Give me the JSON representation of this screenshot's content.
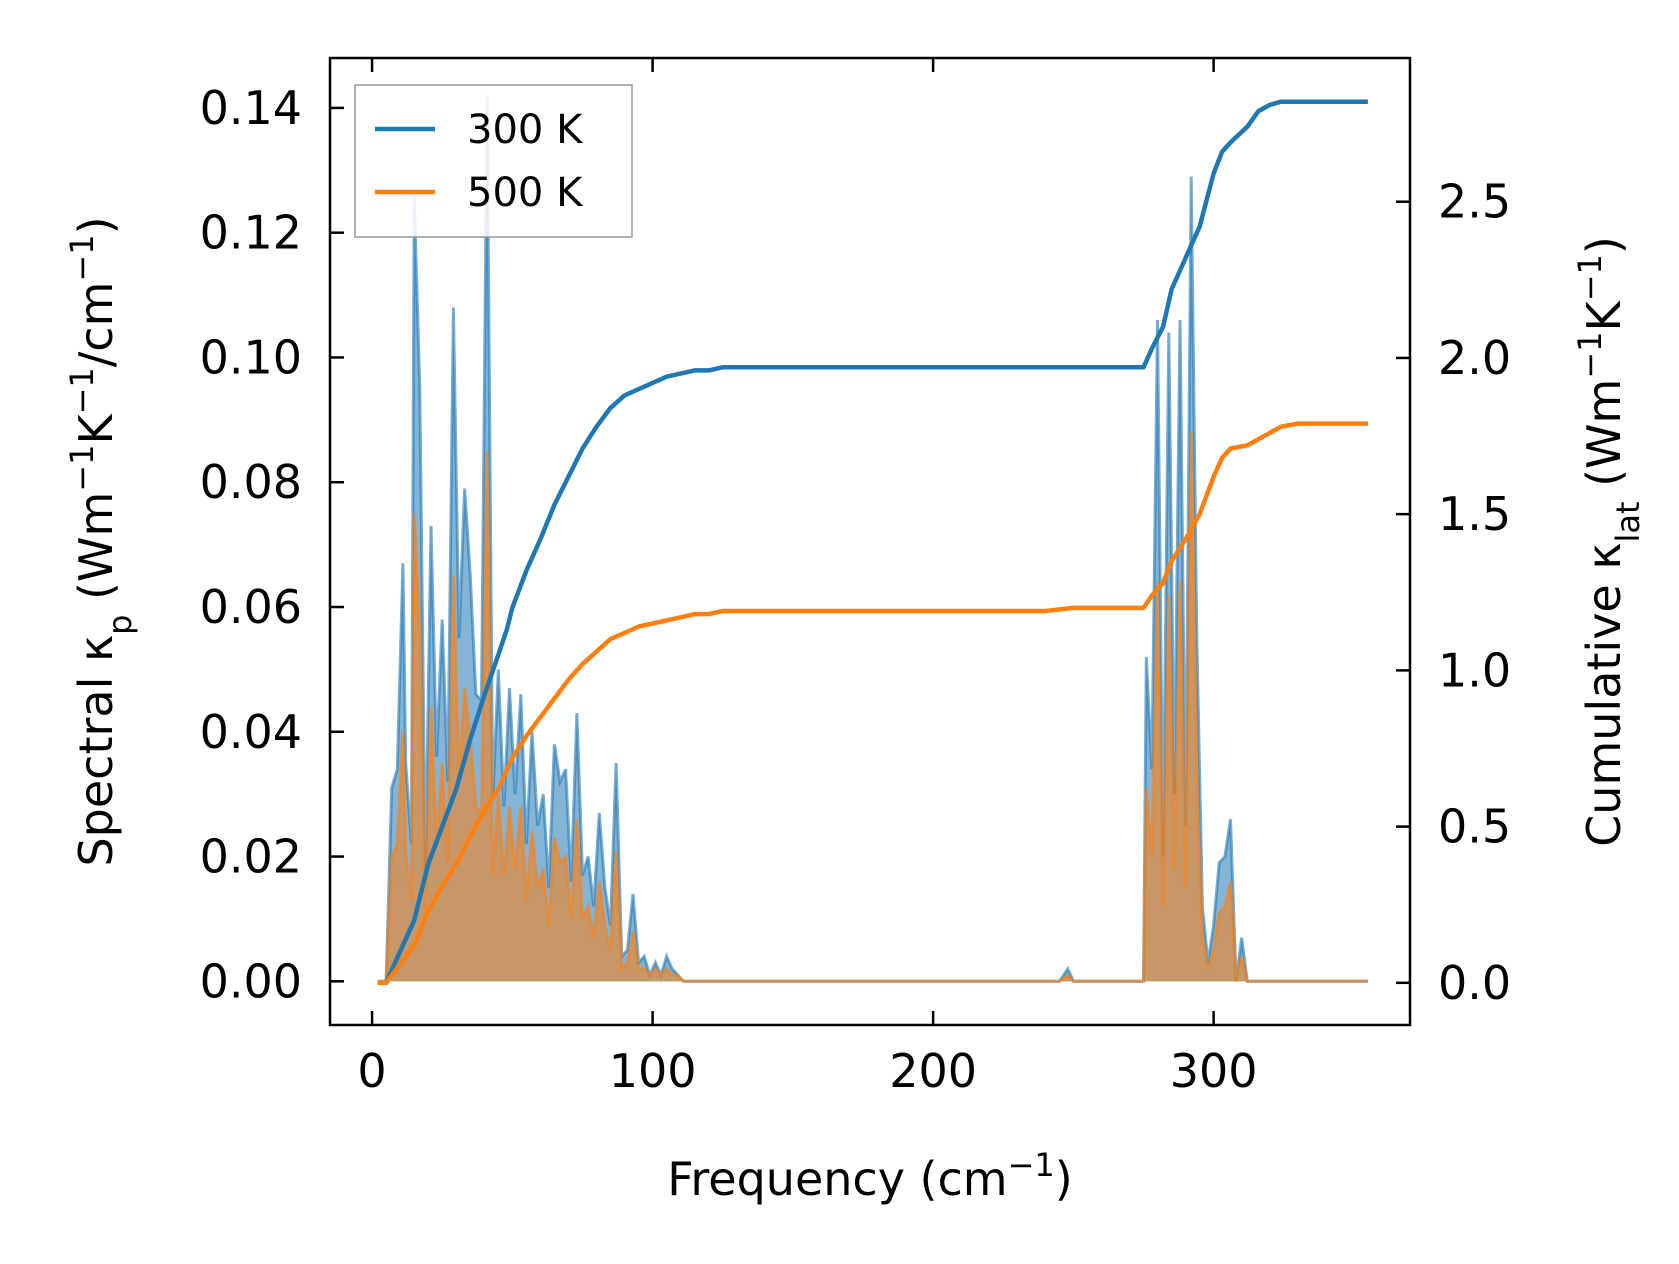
{
  "chart_data": {
    "type": "line",
    "xlabel": {
      "main": "Frequency (cm",
      "sup": "−1",
      "tail": ")"
    },
    "ylabel_left": [
      {
        "t": "Spectral κ"
      },
      {
        "t": "p",
        "sub": true
      },
      {
        "t": " (Wm"
      },
      {
        "t": "−1",
        "sup": true
      },
      {
        "t": "K"
      },
      {
        "t": "−1",
        "sup": true
      },
      {
        "t": "/cm"
      },
      {
        "t": "−1",
        "sup": true
      },
      {
        "t": ")"
      }
    ],
    "ylabel_right": [
      {
        "t": "Cumulative κ"
      },
      {
        "t": "lat",
        "sub": true
      },
      {
        "t": " (Wm"
      },
      {
        "t": "−1",
        "sup": true
      },
      {
        "t": "K"
      },
      {
        "t": "−1",
        "sup": true
      },
      {
        "t": ")"
      }
    ],
    "xlim": [
      -15,
      370
    ],
    "ylim_left": [
      -0.007,
      0.148
    ],
    "ylim_right": [
      -0.135,
      2.96
    ],
    "xticks": [
      0,
      100,
      200,
      300
    ],
    "xtick_labels": [
      "0",
      "100",
      "200",
      "300"
    ],
    "yticks_left": [
      0.0,
      0.02,
      0.04,
      0.06,
      0.08,
      0.1,
      0.12,
      0.14
    ],
    "ytick_labels_left": [
      "0.00",
      "0.02",
      "0.04",
      "0.06",
      "0.08",
      "0.10",
      "0.12",
      "0.14"
    ],
    "yticks_right": [
      0.0,
      0.5,
      1.0,
      1.5,
      2.0,
      2.5
    ],
    "ytick_labels_right": [
      "0.0",
      "0.5",
      "1.0",
      "1.5",
      "2.0",
      "2.5"
    ],
    "legend": {
      "position": "top-left",
      "entries": [
        "300 K",
        "500 K"
      ]
    },
    "colors": {
      "300 K": "#1f77b4",
      "500 K": "#ff7f0e",
      "fill_300": "#1f77b4",
      "fill_500": "#ff7f0e"
    },
    "spectral": [
      {
        "name": "300 K",
        "x": [
          2,
          5,
          7,
          9,
          11,
          12,
          14,
          15,
          17,
          19,
          21,
          23,
          25,
          27,
          29,
          31,
          33,
          35,
          37,
          39,
          41,
          43,
          45,
          47,
          49,
          51,
          53,
          55,
          57,
          59,
          61,
          63,
          65,
          67,
          69,
          71,
          73,
          75,
          77,
          79,
          81,
          83,
          85,
          87,
          89,
          91,
          93,
          95,
          97,
          99,
          101,
          103,
          105,
          107,
          109,
          111,
          113,
          115,
          117,
          119,
          121,
          123,
          125,
          127,
          129,
          131,
          133,
          135,
          137,
          139,
          141,
          143,
          145,
          150,
          245,
          248,
          250,
          253,
          275,
          276,
          278,
          280,
          282,
          284,
          286,
          288,
          290,
          292,
          294,
          296,
          298,
          300,
          302,
          304,
          306,
          308,
          310,
          312,
          314,
          316,
          318,
          320,
          322,
          324,
          326,
          328,
          330,
          355
        ],
        "y": [
          0.0,
          0.0,
          0.031,
          0.034,
          0.067,
          0.035,
          0.022,
          0.126,
          0.095,
          0.017,
          0.073,
          0.036,
          0.058,
          0.032,
          0.108,
          0.055,
          0.079,
          0.065,
          0.046,
          0.045,
          0.142,
          0.029,
          0.05,
          0.028,
          0.047,
          0.03,
          0.046,
          0.022,
          0.04,
          0.025,
          0.03,
          0.015,
          0.038,
          0.032,
          0.034,
          0.016,
          0.043,
          0.017,
          0.02,
          0.012,
          0.027,
          0.015,
          0.009,
          0.035,
          0.004,
          0.005,
          0.014,
          0.003,
          0.004,
          0.001,
          0.003,
          0.001,
          0.004,
          0.002,
          0.001,
          0.0,
          0.0,
          0.0,
          0.0,
          0.0,
          0.0,
          0.0,
          0.0,
          0.0,
          0.0,
          0.0,
          0.0,
          0.0,
          0.0,
          0.0,
          0.0,
          0.0,
          0.0,
          0.0,
          0.0,
          0.002,
          0.0,
          0.0,
          0.0,
          0.052,
          0.034,
          0.106,
          0.02,
          0.104,
          0.03,
          0.106,
          0.025,
          0.129,
          0.055,
          0.012,
          0.003,
          0.009,
          0.019,
          0.02,
          0.026,
          0.0,
          0.007,
          0.0,
          0.0,
          0.0,
          0.0,
          0.0,
          0.0,
          0.0,
          0.0,
          0.0,
          0.0,
          0.0
        ]
      },
      {
        "name": "500 K",
        "x": [
          2,
          5,
          7,
          9,
          11,
          12,
          14,
          15,
          17,
          19,
          21,
          23,
          25,
          27,
          29,
          31,
          33,
          35,
          37,
          39,
          41,
          43,
          45,
          47,
          49,
          51,
          53,
          55,
          57,
          59,
          61,
          63,
          65,
          67,
          69,
          71,
          73,
          75,
          77,
          79,
          81,
          83,
          85,
          87,
          89,
          91,
          93,
          95,
          97,
          99,
          101,
          103,
          105,
          107,
          109,
          111,
          113,
          115,
          117,
          119,
          121,
          123,
          125,
          127,
          129,
          131,
          133,
          135,
          137,
          139,
          141,
          143,
          145,
          150,
          245,
          248,
          250,
          253,
          275,
          276,
          278,
          280,
          282,
          284,
          286,
          288,
          290,
          292,
          294,
          296,
          298,
          300,
          302,
          304,
          306,
          308,
          310,
          312,
          314,
          316,
          318,
          320,
          322,
          324,
          326,
          328,
          330,
          355
        ],
        "y": [
          0.0,
          0.0,
          0.02,
          0.022,
          0.04,
          0.021,
          0.013,
          0.075,
          0.057,
          0.01,
          0.044,
          0.022,
          0.035,
          0.019,
          0.065,
          0.033,
          0.047,
          0.039,
          0.028,
          0.027,
          0.085,
          0.017,
          0.03,
          0.017,
          0.028,
          0.018,
          0.028,
          0.013,
          0.024,
          0.015,
          0.018,
          0.009,
          0.023,
          0.019,
          0.02,
          0.01,
          0.026,
          0.01,
          0.012,
          0.007,
          0.016,
          0.009,
          0.005,
          0.021,
          0.002,
          0.003,
          0.008,
          0.002,
          0.002,
          0.001,
          0.002,
          0.001,
          0.002,
          0.001,
          0.001,
          0.0,
          0.0,
          0.0,
          0.0,
          0.0,
          0.0,
          0.0,
          0.0,
          0.0,
          0.0,
          0.0,
          0.0,
          0.0,
          0.0,
          0.0,
          0.0,
          0.0,
          0.0,
          0.0,
          0.0,
          0.001,
          0.0,
          0.0,
          0.0,
          0.031,
          0.02,
          0.064,
          0.012,
          0.062,
          0.018,
          0.064,
          0.015,
          0.088,
          0.033,
          0.007,
          0.002,
          0.005,
          0.011,
          0.012,
          0.016,
          0.0,
          0.004,
          0.0,
          0.0,
          0.0,
          0.0,
          0.0,
          0.0,
          0.0,
          0.0,
          0.0,
          0.0,
          0.0
        ]
      }
    ],
    "cumulative": [
      {
        "name": "300 K",
        "x": [
          2,
          5,
          10,
          15,
          20,
          25,
          30,
          35,
          40,
          45,
          48,
          50,
          55,
          60,
          65,
          70,
          75,
          80,
          85,
          90,
          95,
          100,
          105,
          110,
          115,
          120,
          125,
          130,
          135,
          140,
          150,
          200,
          240,
          250,
          275,
          278,
          282,
          285,
          290,
          295,
          300,
          303,
          306,
          312,
          316,
          320,
          324,
          330,
          355
        ],
        "y": [
          0.0,
          0.0,
          0.1,
          0.2,
          0.38,
          0.5,
          0.62,
          0.78,
          0.92,
          1.05,
          1.13,
          1.2,
          1.32,
          1.42,
          1.53,
          1.62,
          1.71,
          1.78,
          1.84,
          1.88,
          1.9,
          1.92,
          1.94,
          1.95,
          1.96,
          1.96,
          1.97,
          1.97,
          1.97,
          1.97,
          1.97,
          1.97,
          1.97,
          1.97,
          1.97,
          2.03,
          2.1,
          2.22,
          2.32,
          2.42,
          2.59,
          2.66,
          2.69,
          2.74,
          2.79,
          2.81,
          2.82,
          2.82,
          2.82
        ]
      },
      {
        "name": "500 K",
        "x": [
          2,
          5,
          10,
          15,
          20,
          25,
          30,
          35,
          40,
          45,
          48,
          50,
          55,
          60,
          65,
          70,
          75,
          80,
          85,
          90,
          95,
          100,
          105,
          110,
          115,
          120,
          125,
          130,
          135,
          140,
          150,
          200,
          240,
          250,
          275,
          278,
          282,
          285,
          290,
          295,
          300,
          303,
          306,
          312,
          316,
          320,
          324,
          330,
          355
        ],
        "y": [
          0.0,
          0.0,
          0.06,
          0.12,
          0.23,
          0.31,
          0.38,
          0.47,
          0.55,
          0.62,
          0.68,
          0.72,
          0.79,
          0.85,
          0.91,
          0.97,
          1.02,
          1.06,
          1.1,
          1.12,
          1.14,
          1.15,
          1.16,
          1.17,
          1.18,
          1.18,
          1.19,
          1.19,
          1.19,
          1.19,
          1.19,
          1.19,
          1.19,
          1.2,
          1.2,
          1.24,
          1.28,
          1.35,
          1.42,
          1.5,
          1.62,
          1.68,
          1.71,
          1.72,
          1.74,
          1.76,
          1.78,
          1.79,
          1.79
        ]
      }
    ]
  }
}
